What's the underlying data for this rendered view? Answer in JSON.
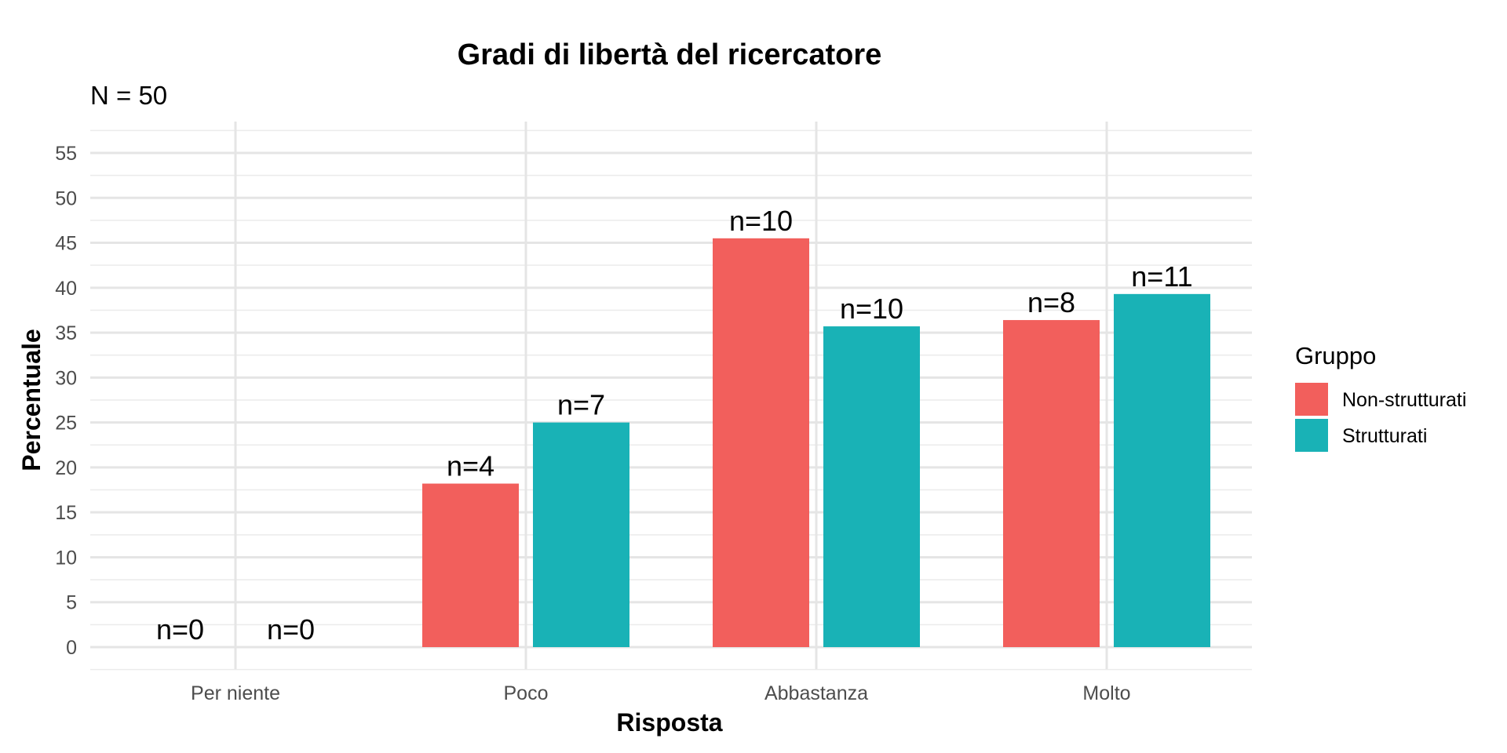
{
  "chart_data": {
    "type": "bar",
    "title": "Gradi di libertà del ricercatore",
    "subtitle": "N = 50",
    "xlabel": "Risposta",
    "ylabel": "Percentuale",
    "categories": [
      "Per niente",
      "Poco",
      "Abbastanza",
      "Molto"
    ],
    "series": [
      {
        "name": "Non-strutturati",
        "color": "#F25F5C",
        "values": [
          0,
          18.2,
          45.5,
          36.4
        ],
        "labels": [
          "n=0",
          "n=4",
          "n=10",
          "n=8"
        ]
      },
      {
        "name": "Strutturati",
        "color": "#19B2B6",
        "values": [
          0,
          25.0,
          35.7,
          39.3
        ],
        "labels": [
          "n=0",
          "n=7",
          "n=10",
          "n=11"
        ]
      }
    ],
    "ylim": [
      0,
      57.5
    ],
    "yticks": [
      "0",
      "5",
      "10",
      "15",
      "20",
      "25",
      "30",
      "35",
      "40",
      "45",
      "50",
      "55"
    ],
    "legend": {
      "title": "Gruppo",
      "position": "right"
    },
    "grid": true
  }
}
